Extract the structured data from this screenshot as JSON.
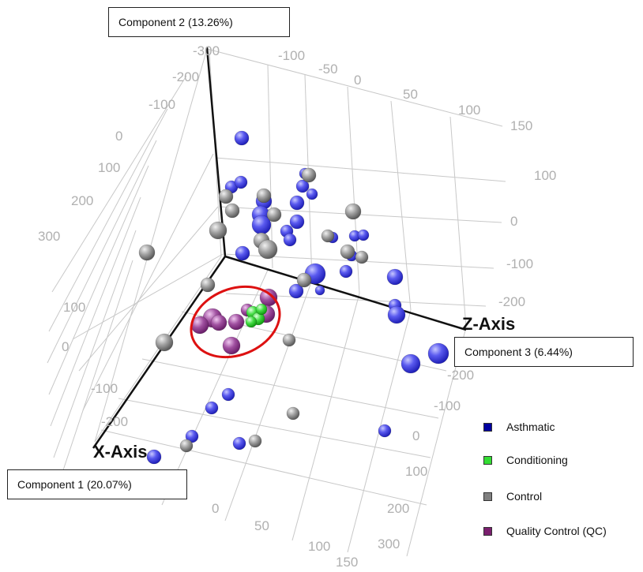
{
  "chart_data": {
    "type": "scatter",
    "axis_names": {
      "x": "X-Axis",
      "z": "Z-Axis"
    },
    "axis_boxes": {
      "component1": "Component 1 (20.07%)",
      "component2": "Component 2 (13.26%)",
      "component3": "Component 3 (6.44%)"
    },
    "tick_labels": {
      "y_left": [
        "-300",
        "-200",
        "-100",
        "0",
        "100",
        "200",
        "300"
      ],
      "y_top": [
        "-100",
        "-50",
        "0",
        "50",
        "100",
        "150"
      ],
      "z_right": [
        "100",
        "0",
        "-100",
        "-200"
      ],
      "z_lower": [
        "-200",
        "-100",
        "0",
        "100",
        "200",
        "300"
      ],
      "x_left": [
        "100",
        "0",
        "-100",
        "-200"
      ],
      "x_bottom": [
        "0",
        "50",
        "100",
        "150"
      ]
    },
    "legend": [
      {
        "label": "Asthmatic",
        "color": "#0000a0"
      },
      {
        "label": "Conditioning",
        "color": "#33dd33"
      },
      {
        "label": "Control",
        "color": "#808080"
      },
      {
        "label": "Quality Control (QC)",
        "color": "#7a1f6e"
      }
    ],
    "highlight": {
      "shape": "ellipse",
      "color": "#dd1111"
    },
    "series": [
      {
        "name": "Asthmatic",
        "color": "#4444ee",
        "points": [
          [
            306,
            175,
            9
          ],
          [
            293,
            237,
            8
          ],
          [
            305,
            231,
            8
          ],
          [
            334,
            255,
            10
          ],
          [
            330,
            272,
            11
          ],
          [
            331,
            285,
            12
          ],
          [
            386,
            220,
            7
          ],
          [
            383,
            236,
            8
          ],
          [
            395,
            246,
            7
          ],
          [
            376,
            257,
            9
          ],
          [
            376,
            281,
            9
          ],
          [
            363,
            293,
            8
          ],
          [
            367,
            304,
            8
          ],
          [
            421,
            301,
            7
          ],
          [
            449,
            299,
            7
          ],
          [
            460,
            298,
            7
          ],
          [
            445,
            324,
            7
          ],
          [
            438,
            344,
            8
          ],
          [
            307,
            321,
            9
          ],
          [
            399,
            347,
            13
          ],
          [
            375,
            369,
            9
          ],
          [
            405,
            368,
            6
          ],
          [
            500,
            351,
            10
          ],
          [
            500,
            387,
            8
          ],
          [
            502,
            399,
            11
          ],
          [
            555,
            448,
            13
          ],
          [
            520,
            461,
            12
          ],
          [
            289,
            500,
            8
          ],
          [
            268,
            517,
            8
          ],
          [
            243,
            553,
            8
          ],
          [
            303,
            562,
            8
          ],
          [
            487,
            546,
            8
          ],
          [
            195,
            579,
            9
          ]
        ]
      },
      {
        "name": "Control",
        "color": "#999999",
        "points": [
          [
            391,
            222,
            9
          ],
          [
            286,
            249,
            9
          ],
          [
            294,
            267,
            9
          ],
          [
            334,
            248,
            9
          ],
          [
            347,
            272,
            9
          ],
          [
            447,
            268,
            10
          ],
          [
            276,
            292,
            11
          ],
          [
            331,
            305,
            10
          ],
          [
            339,
            316,
            12
          ],
          [
            415,
            299,
            8
          ],
          [
            440,
            319,
            9
          ],
          [
            458,
            326,
            8
          ],
          [
            186,
            320,
            10
          ],
          [
            263,
            361,
            9
          ],
          [
            385,
            355,
            9
          ],
          [
            208,
            434,
            11
          ],
          [
            366,
            431,
            8
          ],
          [
            371,
            524,
            8
          ],
          [
            323,
            559,
            8
          ],
          [
            236,
            565,
            8
          ]
        ]
      },
      {
        "name": "Quality Control (QC)",
        "color": "#a04aa0",
        "points": [
          [
            269,
            403,
            12
          ],
          [
            253,
            412,
            11
          ],
          [
            277,
            409,
            10
          ],
          [
            299,
            408,
            10
          ],
          [
            340,
            377,
            11
          ],
          [
            337,
            398,
            11
          ],
          [
            293,
            438,
            11
          ],
          [
            313,
            393,
            8
          ]
        ]
      },
      {
        "name": "Conditioning",
        "color": "#44dd44",
        "points": [
          [
            320,
            396,
            8
          ],
          [
            327,
            404,
            8
          ],
          [
            318,
            408,
            7
          ],
          [
            331,
            392,
            7
          ]
        ]
      }
    ]
  }
}
